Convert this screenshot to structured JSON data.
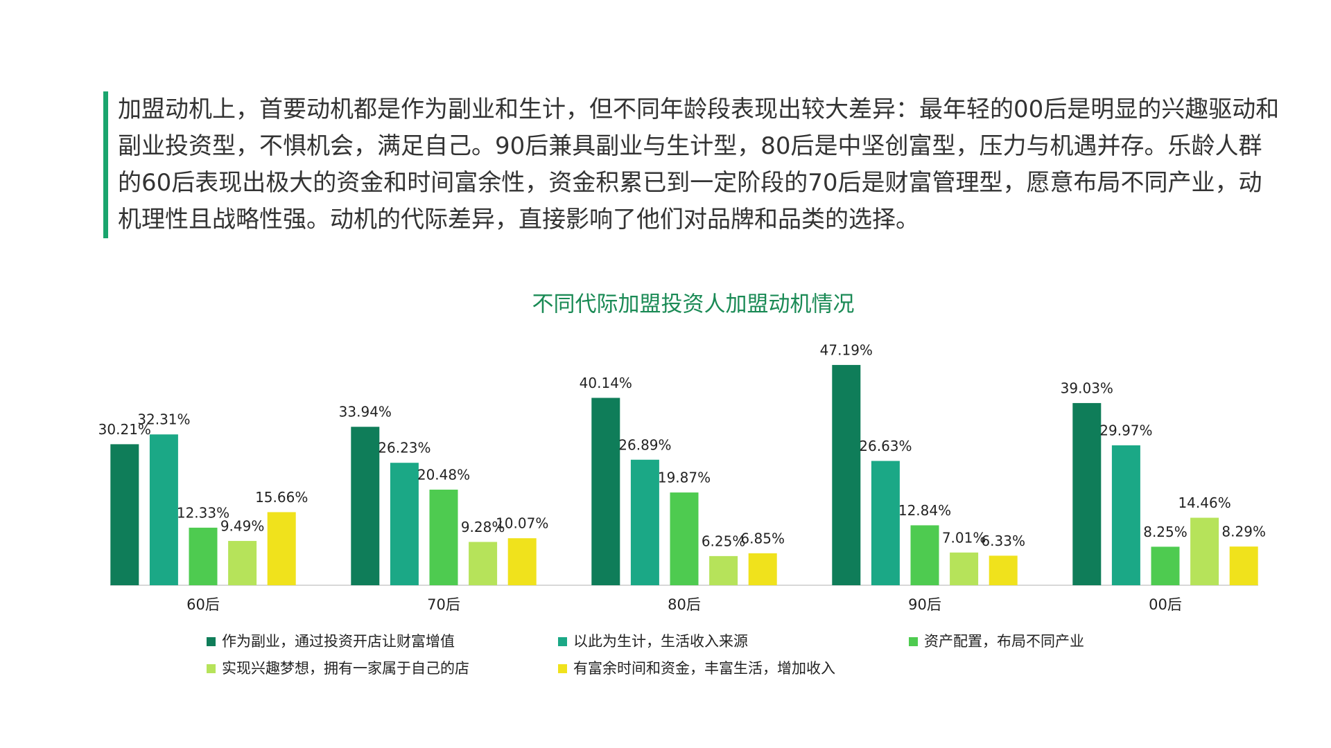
{
  "intro": "加盟动机上，首要动机都是作为副业和生计，但不同年龄段表现出较大差异：最年轻的00后是明显的兴趣驱动和副业投资型，不惧机会，满足自己。90后兼具副业与生计型，80后是中坚创富型，压力与机遇并存。乐龄人群的60后表现出极大的资金和时间富余性，资金积累已到一定阶段的70后是财富管理型，愿意布局不同产业，动机理性且战略性强。动机的代际差异，直接影响了他们对品牌和品类的选择。",
  "chart_data": {
    "type": "bar",
    "title": "不同代际加盟投资人加盟动机情况",
    "categories": [
      "60后",
      "70后",
      "80后",
      "90后",
      "00后"
    ],
    "series": [
      {
        "name": "作为副业，通过投资开店让财富增值",
        "color": "#0f7d59",
        "values": [
          30.21,
          33.94,
          40.14,
          47.19,
          39.03
        ],
        "value_labels": [
          "30.21%",
          "33.94%",
          "40.14%",
          "47.19%",
          "39.03%"
        ]
      },
      {
        "name": "以此为生计，生活收入来源",
        "color": "#1ba886",
        "values": [
          32.31,
          26.23,
          26.89,
          26.63,
          29.97
        ],
        "value_labels": [
          "32.31%",
          "26.23%",
          "26.89%",
          "26.63%",
          "29.97%"
        ]
      },
      {
        "name": "资产配置，布局不同产业",
        "color": "#4ecb50",
        "values": [
          12.33,
          20.48,
          19.87,
          12.84,
          8.25
        ],
        "value_labels": [
          "12.33%",
          "20.48%",
          "19.87%",
          "12.84%",
          "8.25%"
        ]
      },
      {
        "name": "实现兴趣梦想，拥有一家属于自己的店",
        "color": "#b6e35a",
        "values": [
          9.49,
          9.28,
          6.25,
          7.01,
          14.46
        ],
        "value_labels": [
          "9.49%",
          "9.28%",
          "6.25%",
          "7.01%",
          "14.46%"
        ]
      },
      {
        "name": "有富余时间和资金，丰富生活，增加收入",
        "color": "#f0e21c",
        "values": [
          15.66,
          10.07,
          6.85,
          6.33,
          8.29
        ],
        "value_labels": [
          "15.66%",
          "10.07%",
          "6.85%",
          "6.33%",
          "8.29%"
        ]
      }
    ]
  }
}
